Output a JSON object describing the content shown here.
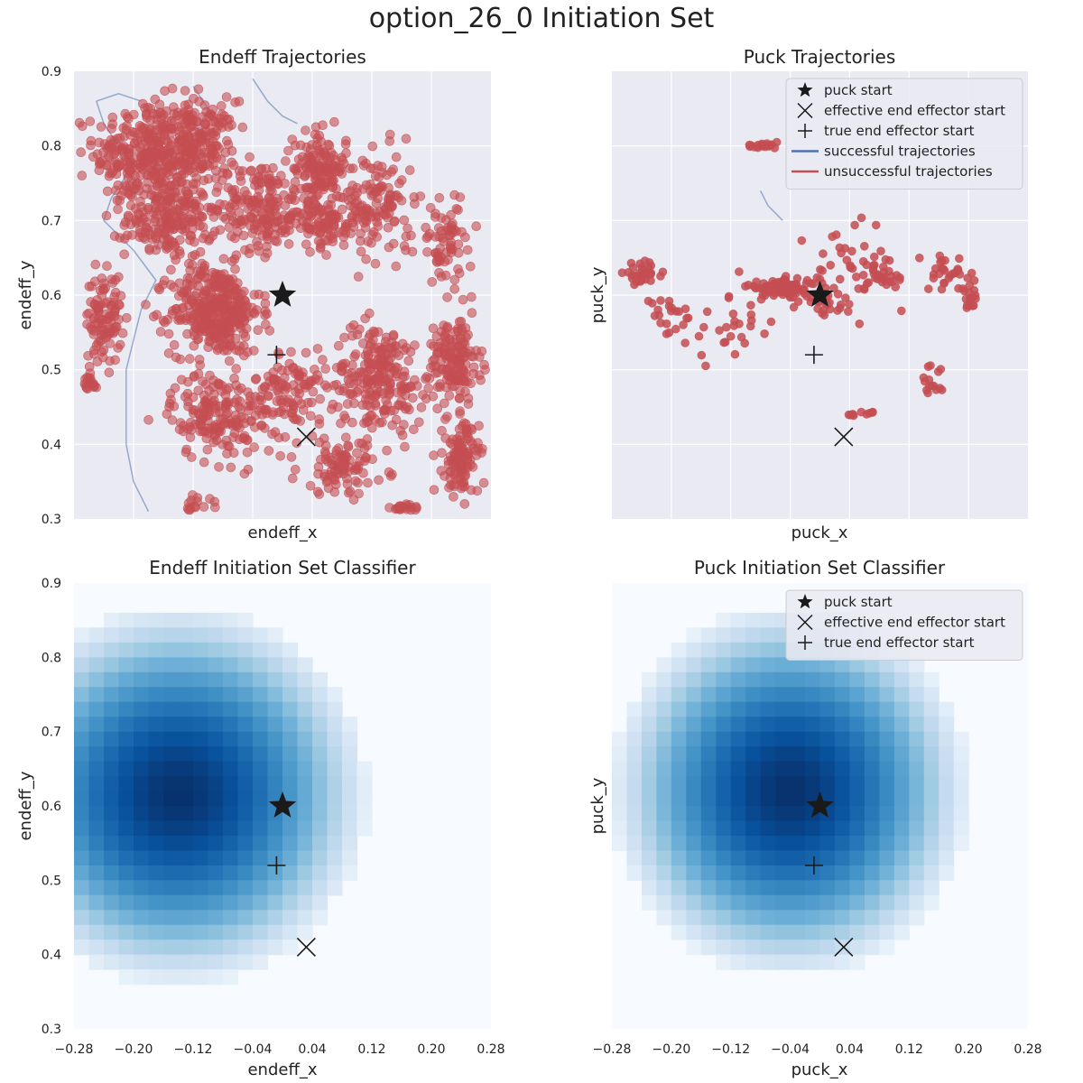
{
  "figure": {
    "suptitle": "option_26_0 Initiation Set"
  },
  "chart_data": [
    {
      "id": "endeff_traj",
      "type": "scatter",
      "title": "Endeff Trajectories",
      "xlabel": "endeff_x",
      "ylabel": "endeff_y",
      "xlim": [
        -0.28,
        0.28
      ],
      "ylim": [
        0.3,
        0.9
      ],
      "xticks_shown": false,
      "yticks": [
        "0.3",
        "0.4",
        "0.5",
        "0.6",
        "0.7",
        "0.8",
        "0.9"
      ],
      "grid": true,
      "legend": false,
      "markers": {
        "puck_start": [
          0.0,
          0.6
        ],
        "effective_end_effector_start": [
          0.032,
          0.41
        ],
        "true_end_effector_start": [
          -0.008,
          0.52
        ]
      },
      "successful_paths": [
        [
          [
            -0.25,
            0.86
          ],
          [
            -0.24,
            0.83
          ],
          [
            -0.22,
            0.8
          ],
          [
            -0.21,
            0.76
          ],
          [
            -0.23,
            0.73
          ],
          [
            -0.24,
            0.7
          ],
          [
            -0.2,
            0.66
          ],
          [
            -0.17,
            0.62
          ],
          [
            -0.19,
            0.58
          ],
          [
            -0.2,
            0.54
          ],
          [
            -0.21,
            0.5
          ],
          [
            -0.21,
            0.45
          ],
          [
            -0.21,
            0.4
          ],
          [
            -0.2,
            0.35
          ],
          [
            -0.18,
            0.31
          ]
        ],
        [
          [
            -0.12,
            0.88
          ],
          [
            -0.1,
            0.85
          ],
          [
            -0.12,
            0.81
          ],
          [
            -0.13,
            0.77
          ],
          [
            -0.15,
            0.73
          ],
          [
            -0.16,
            0.69
          ],
          [
            -0.17,
            0.66
          ]
        ],
        [
          [
            -0.04,
            0.89
          ],
          [
            -0.02,
            0.86
          ],
          [
            0.0,
            0.84
          ],
          [
            0.02,
            0.83
          ]
        ],
        [
          [
            -0.25,
            0.86
          ],
          [
            -0.22,
            0.87
          ],
          [
            -0.19,
            0.86
          ]
        ]
      ],
      "unsuccessful_clusters": [
        {
          "center": [
            -0.18,
            0.79
          ],
          "spread": [
            0.06,
            0.06
          ],
          "count": 320
        },
        {
          "center": [
            -0.11,
            0.8
          ],
          "spread": [
            0.04,
            0.05
          ],
          "count": 180
        },
        {
          "center": [
            -0.15,
            0.7
          ],
          "spread": [
            0.05,
            0.04
          ],
          "count": 200
        },
        {
          "center": [
            -0.09,
            0.58
          ],
          "spread": [
            0.05,
            0.05
          ],
          "count": 360
        },
        {
          "center": [
            -0.03,
            0.72
          ],
          "spread": [
            0.04,
            0.05
          ],
          "count": 150
        },
        {
          "center": [
            0.05,
            0.77
          ],
          "spread": [
            0.03,
            0.04
          ],
          "count": 150
        },
        {
          "center": [
            0.05,
            0.7
          ],
          "spread": [
            0.05,
            0.03
          ],
          "count": 120
        },
        {
          "center": [
            0.13,
            0.72
          ],
          "spread": [
            0.04,
            0.06
          ],
          "count": 120
        },
        {
          "center": [
            -0.24,
            0.57
          ],
          "spread": [
            0.02,
            0.05
          ],
          "count": 100
        },
        {
          "center": [
            -0.09,
            0.44
          ],
          "spread": [
            0.05,
            0.05
          ],
          "count": 180
        },
        {
          "center": [
            0.01,
            0.47
          ],
          "spread": [
            0.04,
            0.05
          ],
          "count": 120
        },
        {
          "center": [
            0.13,
            0.49
          ],
          "spread": [
            0.05,
            0.06
          ],
          "count": 230
        },
        {
          "center": [
            0.23,
            0.51
          ],
          "spread": [
            0.03,
            0.05
          ],
          "count": 160
        },
        {
          "center": [
            0.24,
            0.38
          ],
          "spread": [
            0.02,
            0.04
          ],
          "count": 120
        },
        {
          "center": [
            0.22,
            0.67
          ],
          "spread": [
            0.03,
            0.05
          ],
          "count": 70
        },
        {
          "center": [
            0.08,
            0.37
          ],
          "spread": [
            0.05,
            0.03
          ],
          "count": 90
        },
        {
          "center": [
            -0.26,
            0.48
          ],
          "spread": [
            0.01,
            0.01
          ],
          "count": 20
        },
        {
          "center": [
            -0.12,
            0.32
          ],
          "spread": [
            0.02,
            0.01
          ],
          "count": 15
        },
        {
          "center": [
            0.17,
            0.315
          ],
          "spread": [
            0.02,
            0.005
          ],
          "count": 20
        }
      ]
    },
    {
      "id": "puck_traj",
      "type": "scatter",
      "title": "Puck Trajectories",
      "xlabel": "puck_x",
      "ylabel": "puck_y",
      "xlim": [
        -0.28,
        0.28
      ],
      "ylim": [
        0.3,
        0.9
      ],
      "xticks_shown": false,
      "yticks_shown": false,
      "grid": true,
      "legend": "top-right",
      "legend_entries": [
        "puck start",
        "effective end effector start",
        "true end effector start",
        "successful trajectories",
        "unsuccessful trajectories"
      ],
      "markers": {
        "puck_start": [
          0.0,
          0.6
        ],
        "effective_end_effector_start": [
          0.032,
          0.41
        ],
        "true_end_effector_start": [
          -0.008,
          0.52
        ]
      },
      "successful_paths": [
        [
          [
            -0.08,
            0.74
          ],
          [
            -0.07,
            0.72
          ],
          [
            -0.05,
            0.7
          ]
        ]
      ],
      "unsuccessful_clusters": [
        {
          "center": [
            -0.05,
            0.61
          ],
          "spread": [
            0.04,
            0.01
          ],
          "count": 80
        },
        {
          "center": [
            -0.24,
            0.63
          ],
          "spread": [
            0.02,
            0.01
          ],
          "count": 30
        },
        {
          "center": [
            -0.08,
            0.8
          ],
          "spread": [
            0.02,
            0.003
          ],
          "count": 20
        },
        {
          "center": [
            0.01,
            0.59
          ],
          "spread": [
            0.03,
            0.01
          ],
          "count": 25
        },
        {
          "center": [
            0.08,
            0.62
          ],
          "spread": [
            0.03,
            0.02
          ],
          "count": 25
        },
        {
          "center": [
            0.17,
            0.63
          ],
          "spread": [
            0.02,
            0.02
          ],
          "count": 25
        },
        {
          "center": [
            0.2,
            0.6
          ],
          "spread": [
            0.01,
            0.02
          ],
          "count": 20
        },
        {
          "center": [
            0.15,
            0.48
          ],
          "spread": [
            0.02,
            0.02
          ],
          "count": 15
        },
        {
          "center": [
            -0.2,
            0.57
          ],
          "spread": [
            0.03,
            0.02
          ],
          "count": 20
        },
        {
          "center": [
            -0.12,
            0.56
          ],
          "spread": [
            0.05,
            0.04
          ],
          "count": 30
        },
        {
          "center": [
            0.04,
            0.64
          ],
          "spread": [
            0.06,
            0.05
          ],
          "count": 40
        },
        {
          "center": [
            0.06,
            0.44
          ],
          "spread": [
            0.02,
            0.003
          ],
          "count": 10
        }
      ]
    },
    {
      "id": "endeff_cls",
      "type": "heatmap",
      "title": "Endeff Initiation Set Classifier",
      "xlabel": "endeff_x",
      "ylabel": "endeff_y",
      "xlim": [
        -0.28,
        0.28
      ],
      "ylim": [
        0.3,
        0.9
      ],
      "xticks": [
        "−0.28",
        "−0.20",
        "−0.12",
        "−0.04",
        "0.04",
        "0.12",
        "0.20",
        "0.28"
      ],
      "yticks": [
        "0.3",
        "0.4",
        "0.5",
        "0.6",
        "0.7",
        "0.8",
        "0.9"
      ],
      "colormap": "Blues",
      "grid_cells": 28,
      "blob_center": [
        -0.14,
        0.615
      ],
      "blob_radius": [
        0.255,
        0.255
      ],
      "markers": {
        "puck_start": [
          0.0,
          0.6
        ],
        "effective_end_effector_start": [
          0.032,
          0.41
        ],
        "true_end_effector_start": [
          -0.008,
          0.52
        ]
      }
    },
    {
      "id": "puck_cls",
      "type": "heatmap",
      "title": "Puck Initiation Set Classifier",
      "xlabel": "puck_x",
      "ylabel": "puck_y",
      "xlim": [
        -0.28,
        0.28
      ],
      "ylim": [
        0.3,
        0.9
      ],
      "xticks": [
        "−0.28",
        "−0.20",
        "−0.12",
        "−0.04",
        "0.04",
        "0.12",
        "0.20",
        "0.28"
      ],
      "yticks_shown": false,
      "colormap": "Blues",
      "grid_cells": 28,
      "blob_center": [
        -0.04,
        0.62
      ],
      "blob_radius": [
        0.24,
        0.25
      ],
      "legend": "top-right",
      "legend_entries": [
        "puck start",
        "effective end effector start",
        "true end effector start"
      ],
      "markers": {
        "puck_start": [
          0.0,
          0.6
        ],
        "effective_end_effector_start": [
          0.032,
          0.41
        ],
        "true_end_effector_start": [
          -0.008,
          0.52
        ]
      }
    }
  ],
  "colors": {
    "axes_bg": "#eaeaf2",
    "grid": "#ffffff",
    "success": "#4c72b0",
    "failure": "#c44e52",
    "marker": "#1a1a1a",
    "legend_bg": "#eaeaf2",
    "legend_border": "#cccccc"
  }
}
